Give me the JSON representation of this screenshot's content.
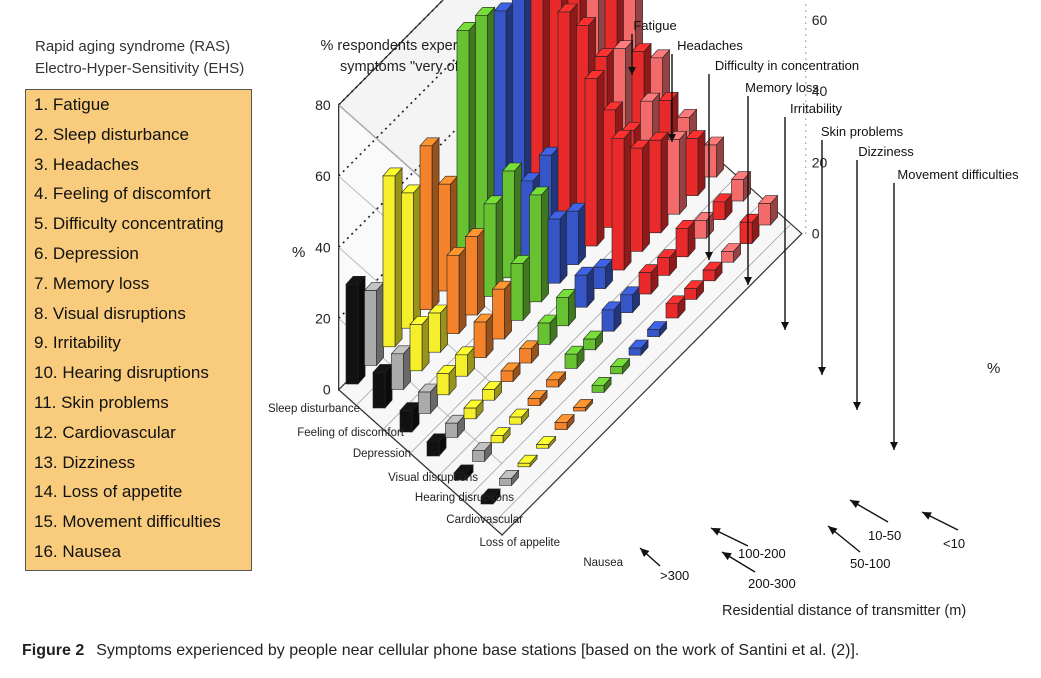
{
  "header": {
    "line1": "Rapid aging syndrome (RAS)",
    "line2": "Electro-Hyper-Sensitivity (EHS)"
  },
  "legend_items": [
    "1. Fatigue",
    "2. Sleep disturbance",
    "3. Headaches",
    "4. Feeling of discomfort",
    "5. Difficulty concentrating",
    "6. Depression",
    "7. Memory loss",
    "8. Visual disruptions",
    "9. Irritability",
    "10. Hearing disruptions",
    "11. Skin problems",
    "12. Cardiovascular",
    "13. Dizziness",
    "14. Loss of appetite",
    "15. Movement difficulties",
    "16. Nausea"
  ],
  "caption": {
    "label": "Figure 2",
    "text": "Symptoms experienced by people near cellular phone base stations [based on the work of Santini et al. (2)]."
  },
  "colors": {
    "black": "#111111",
    "gray": "#aaaaaa",
    "yellow": "#f5ee2a",
    "orange": "#f4822a",
    "green": "#67c232",
    "blue": "#3656c8",
    "red": "#e82a2a",
    "pink": "#f26a6a",
    "legend_bg": "#f8cc7c"
  },
  "chart_data": {
    "type": "bar3d",
    "title": "% respondents experiencing symptoms \"very often\"",
    "ylabel_left": "%",
    "ylabel_right": "%",
    "xlabel": "Residential distance of transmitter (m)",
    "ylim": [
      0,
      80
    ],
    "yticks": [
      0,
      20,
      40,
      60,
      80
    ],
    "distance_categories": [
      "<10",
      "10-50",
      "50-100",
      "100-200",
      "200-300",
      ">300"
    ],
    "symptoms": [
      "Fatigue",
      "Sleep disturbance",
      "Headaches",
      "Feeling of discomfort",
      "Difficulty concentrating",
      "Depression",
      "Memory loss",
      "Visual disruptions",
      "Irritability",
      "Hearing disruptions",
      "Skin problems",
      "Cardiovascular",
      "Dizziness",
      "Loss of appetite",
      "Movement difficulties",
      "Nausea"
    ],
    "symptom_colors": [
      "black",
      "gray",
      "yellow",
      "yellow",
      "orange",
      "orange",
      "green",
      "green",
      "blue",
      "blue",
      "red",
      "red",
      "red",
      "pink",
      "red",
      "pink"
    ],
    "left_row_labels": [
      "Sleep disturbance",
      "Feeling of discomfort",
      "Depression",
      "Visual disruptions",
      "Hearing disruptions",
      "Cardiovascular",
      "Loss of appelite",
      "Nausea"
    ],
    "top_labels": [
      "Fatigue",
      "Headaches",
      "Difficulty in concentration",
      "Memory loss",
      "Irritability",
      "Skin problems",
      "Dizziness",
      "Movement difficulties"
    ],
    "series": [
      {
        "name": ">300",
        "values": [
          28,
          21,
          48,
          38,
          46,
          30,
          68,
          67,
          63,
          67,
          83,
          75,
          57,
          60,
          44,
          38
        ]
      },
      {
        "name": "200-300",
        "values": [
          10,
          10,
          13,
          11,
          22,
          22,
          26,
          30,
          22,
          24,
          59,
          50,
          36,
          33,
          27,
          20
        ]
      },
      {
        "name": "100-200",
        "values": [
          6,
          6,
          6,
          6,
          10,
          14,
          16,
          30,
          18,
          15,
          47,
          33,
          22,
          25,
          20,
          10
        ]
      },
      {
        "name": "50-100",
        "values": [
          4,
          4,
          3,
          3,
          3,
          4,
          6,
          8,
          9,
          6,
          37,
          29,
          26,
          21,
          16,
          9
        ]
      },
      {
        "name": "10-50",
        "values": [
          2,
          3,
          2,
          2,
          2,
          2,
          4,
          3,
          6,
          5,
          6,
          5,
          8,
          5,
          5,
          6
        ]
      },
      {
        "name": "<10",
        "values": [
          2,
          2,
          1,
          1,
          2,
          1,
          2,
          2,
          2,
          2,
          4,
          3,
          3,
          3,
          6,
          6
        ]
      }
    ]
  }
}
